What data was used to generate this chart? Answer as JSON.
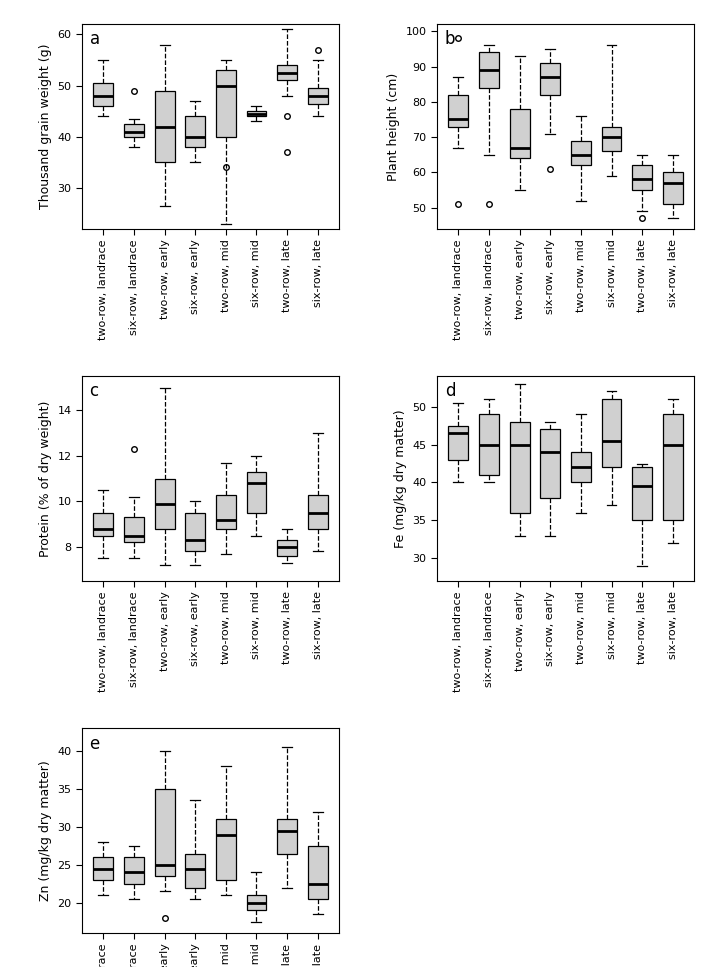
{
  "categories": [
    "two-row, landrace",
    "six-row, landrace",
    "two-row, early",
    "six-row, early",
    "two-row, mid",
    "six-row, mid",
    "two-row, late",
    "six-row, late"
  ],
  "panel_labels": [
    "a",
    "b",
    "c",
    "d",
    "e"
  ],
  "ylabels": [
    "Thousand grain weight (g)",
    "Plant height (cm)",
    "Protein (% of dry weight)",
    "Fe (mg/kg dry matter)",
    "Zn (mg/kg dry matter)"
  ],
  "plot_a": {
    "ylim": [
      22,
      62
    ],
    "yticks": [
      30,
      40,
      50,
      60
    ],
    "boxes": [
      {
        "q1": 46.0,
        "median": 48.0,
        "q3": 50.5,
        "whislo": 44.0,
        "whishi": 55.0,
        "fliers": []
      },
      {
        "q1": 40.0,
        "median": 41.0,
        "q3": 42.5,
        "whislo": 38.0,
        "whishi": 43.5,
        "fliers": [
          49.0
        ]
      },
      {
        "q1": 35.0,
        "median": 42.0,
        "q3": 49.0,
        "whislo": 26.5,
        "whishi": 58.0,
        "fliers": []
      },
      {
        "q1": 38.0,
        "median": 40.0,
        "q3": 44.0,
        "whislo": 35.0,
        "whishi": 47.0,
        "fliers": []
      },
      {
        "q1": 40.0,
        "median": 50.0,
        "q3": 53.0,
        "whislo": 23.0,
        "whishi": 55.0,
        "fliers": [
          34.0
        ]
      },
      {
        "q1": 44.0,
        "median": 44.5,
        "q3": 45.0,
        "whislo": 43.0,
        "whishi": 46.0,
        "fliers": []
      },
      {
        "q1": 51.0,
        "median": 52.5,
        "q3": 54.0,
        "whislo": 48.0,
        "whishi": 61.0,
        "fliers": [
          44.0,
          37.0
        ]
      },
      {
        "q1": 46.5,
        "median": 48.0,
        "q3": 49.5,
        "whislo": 44.0,
        "whishi": 55.0,
        "fliers": [
          57.0
        ]
      }
    ]
  },
  "plot_b": {
    "ylim": [
      44,
      102
    ],
    "yticks": [
      50,
      60,
      70,
      80,
      90,
      100
    ],
    "boxes": [
      {
        "q1": 73.0,
        "median": 75.0,
        "q3": 82.0,
        "whislo": 67.0,
        "whishi": 87.0,
        "fliers": [
          51.0,
          98.0
        ]
      },
      {
        "q1": 84.0,
        "median": 89.0,
        "q3": 94.0,
        "whislo": 65.0,
        "whishi": 96.0,
        "fliers": [
          51.0
        ]
      },
      {
        "q1": 64.0,
        "median": 67.0,
        "q3": 78.0,
        "whislo": 55.0,
        "whishi": 93.0,
        "fliers": []
      },
      {
        "q1": 82.0,
        "median": 87.0,
        "q3": 91.0,
        "whislo": 71.0,
        "whishi": 95.0,
        "fliers": [
          61.0
        ]
      },
      {
        "q1": 62.0,
        "median": 65.0,
        "q3": 69.0,
        "whislo": 52.0,
        "whishi": 76.0,
        "fliers": []
      },
      {
        "q1": 66.0,
        "median": 70.0,
        "q3": 73.0,
        "whislo": 59.0,
        "whishi": 96.0,
        "fliers": []
      },
      {
        "q1": 55.0,
        "median": 58.0,
        "q3": 62.0,
        "whislo": 49.0,
        "whishi": 65.0,
        "fliers": [
          47.0
        ]
      },
      {
        "q1": 51.0,
        "median": 57.0,
        "q3": 60.0,
        "whislo": 47.0,
        "whishi": 65.0,
        "fliers": []
      }
    ]
  },
  "plot_c": {
    "ylim": [
      6.5,
      15.5
    ],
    "yticks": [
      8,
      10,
      12,
      14
    ],
    "boxes": [
      {
        "q1": 8.5,
        "median": 8.8,
        "q3": 9.5,
        "whislo": 7.5,
        "whishi": 10.5,
        "fliers": []
      },
      {
        "q1": 8.2,
        "median": 8.5,
        "q3": 9.3,
        "whislo": 7.5,
        "whishi": 10.2,
        "fliers": [
          12.3
        ]
      },
      {
        "q1": 8.8,
        "median": 9.9,
        "q3": 11.0,
        "whislo": 7.2,
        "whishi": 15.0,
        "fliers": []
      },
      {
        "q1": 7.8,
        "median": 8.3,
        "q3": 9.5,
        "whislo": 7.2,
        "whishi": 10.0,
        "fliers": []
      },
      {
        "q1": 8.8,
        "median": 9.2,
        "q3": 10.3,
        "whislo": 7.7,
        "whishi": 11.7,
        "fliers": []
      },
      {
        "q1": 9.5,
        "median": 10.8,
        "q3": 11.3,
        "whislo": 8.5,
        "whishi": 12.0,
        "fliers": []
      },
      {
        "q1": 7.6,
        "median": 8.0,
        "q3": 8.3,
        "whislo": 7.3,
        "whishi": 8.8,
        "fliers": []
      },
      {
        "q1": 8.8,
        "median": 9.5,
        "q3": 10.3,
        "whislo": 7.8,
        "whishi": 13.0,
        "fliers": []
      }
    ]
  },
  "plot_d": {
    "ylim": [
      27,
      54
    ],
    "yticks": [
      30,
      35,
      40,
      45,
      50
    ],
    "boxes": [
      {
        "q1": 43.0,
        "median": 46.5,
        "q3": 47.5,
        "whislo": 40.0,
        "whishi": 50.5,
        "fliers": []
      },
      {
        "q1": 41.0,
        "median": 45.0,
        "q3": 49.0,
        "whislo": 40.0,
        "whishi": 51.0,
        "fliers": []
      },
      {
        "q1": 36.0,
        "median": 45.0,
        "q3": 48.0,
        "whislo": 33.0,
        "whishi": 53.0,
        "fliers": []
      },
      {
        "q1": 38.0,
        "median": 44.0,
        "q3": 47.0,
        "whislo": 33.0,
        "whishi": 48.0,
        "fliers": []
      },
      {
        "q1": 40.0,
        "median": 42.0,
        "q3": 44.0,
        "whislo": 36.0,
        "whishi": 49.0,
        "fliers": []
      },
      {
        "q1": 42.0,
        "median": 45.5,
        "q3": 51.0,
        "whislo": 37.0,
        "whishi": 52.0,
        "fliers": []
      },
      {
        "q1": 35.0,
        "median": 39.5,
        "q3": 42.0,
        "whislo": 29.0,
        "whishi": 42.5,
        "fliers": []
      },
      {
        "q1": 35.0,
        "median": 45.0,
        "q3": 49.0,
        "whislo": 32.0,
        "whishi": 51.0,
        "fliers": []
      }
    ]
  },
  "plot_e": {
    "ylim": [
      16,
      43
    ],
    "yticks": [
      20,
      25,
      30,
      35,
      40
    ],
    "boxes": [
      {
        "q1": 23.0,
        "median": 24.5,
        "q3": 26.0,
        "whislo": 21.0,
        "whishi": 28.0,
        "fliers": []
      },
      {
        "q1": 22.5,
        "median": 24.0,
        "q3": 26.0,
        "whislo": 20.5,
        "whishi": 27.5,
        "fliers": []
      },
      {
        "q1": 23.5,
        "median": 25.0,
        "q3": 35.0,
        "whislo": 21.5,
        "whishi": 40.0,
        "fliers": [
          18.0
        ]
      },
      {
        "q1": 22.0,
        "median": 24.5,
        "q3": 26.5,
        "whislo": 20.5,
        "whishi": 33.5,
        "fliers": []
      },
      {
        "q1": 23.0,
        "median": 29.0,
        "q3": 31.0,
        "whislo": 21.0,
        "whishi": 38.0,
        "fliers": []
      },
      {
        "q1": 19.0,
        "median": 20.0,
        "q3": 21.0,
        "whislo": 17.5,
        "whishi": 24.0,
        "fliers": []
      },
      {
        "q1": 26.5,
        "median": 29.5,
        "q3": 31.0,
        "whislo": 22.0,
        "whishi": 40.5,
        "fliers": []
      },
      {
        "q1": 20.5,
        "median": 22.5,
        "q3": 27.5,
        "whislo": 18.5,
        "whishi": 32.0,
        "fliers": []
      }
    ]
  },
  "box_facecolor": "#d0d0d0",
  "box_edgecolor": "#000000",
  "median_color": "#000000",
  "whisker_color": "#000000",
  "flier_color": "#000000",
  "box_width": 0.65,
  "linewidth": 0.9,
  "median_linewidth": 2.0,
  "tick_labelsize": 8.0,
  "ylabel_fontsize": 9.0,
  "panel_fontsize": 12.0
}
